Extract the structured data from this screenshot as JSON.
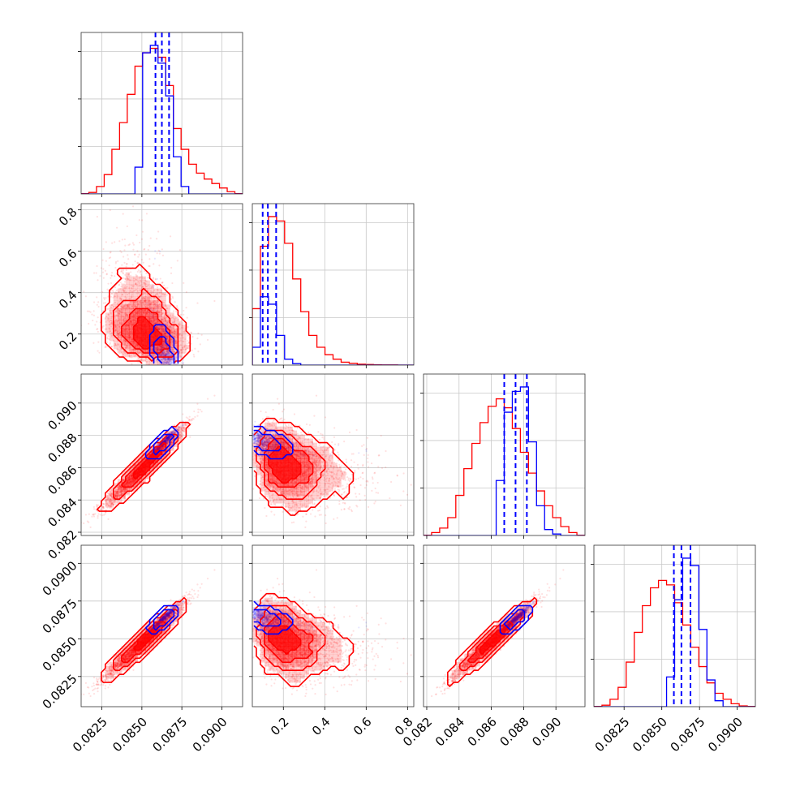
{
  "chart_data": {
    "type": "scatter",
    "plot": "corner",
    "title": "",
    "grid": true,
    "legend": "none",
    "colors": {
      "run_a": "#ff0000",
      "run_b": "#0000ff"
    },
    "params": [
      {
        "range": [
          0.0812,
          0.0913
        ],
        "ticks": [
          0.0825,
          0.085,
          0.0875,
          0.09
        ],
        "tick_labels": [
          "0.0825",
          "0.0850",
          "0.0875",
          "0.0900"
        ]
      },
      {
        "range": [
          0.05,
          0.83
        ],
        "ticks": [
          0.2,
          0.4,
          0.6,
          0.8
        ],
        "tick_labels": [
          "0.2",
          "0.4",
          "0.6",
          "0.8"
        ]
      },
      {
        "range": [
          0.0818,
          0.0918
        ],
        "ticks": [
          0.082,
          0.084,
          0.086,
          0.088,
          0.09
        ],
        "tick_labels": [
          "0.082",
          "0.084",
          "0.086",
          "0.088",
          "0.090"
        ]
      },
      {
        "range": [
          0.0805,
          0.0912
        ],
        "ticks": [
          0.0825,
          0.085,
          0.0875,
          0.09
        ],
        "tick_labels": [
          "0.0825",
          "0.0850",
          "0.0875",
          "0.0900"
        ]
      }
    ],
    "hist_red": [
      [
        0.002,
        0.01,
        0.05,
        0.13,
        0.3,
        0.48,
        0.67,
        0.86,
        0.95,
        0.98,
        0.92,
        0.73,
        0.44,
        0.3,
        0.2,
        0.14,
        0.1,
        0.07,
        0.04,
        0.015,
        0.002
      ],
      [
        0.38,
        0.8,
        1.0,
        0.97,
        0.82,
        0.58,
        0.36,
        0.2,
        0.12,
        0.07,
        0.04,
        0.02,
        0.012,
        0.006,
        0.004,
        0.002,
        0.001,
        0.001,
        0.0,
        0.0
      ],
      [
        0.002,
        0.02,
        0.05,
        0.12,
        0.27,
        0.45,
        0.62,
        0.76,
        0.87,
        0.92,
        0.86,
        0.72,
        0.56,
        0.42,
        0.3,
        0.2,
        0.12,
        0.06,
        0.02,
        0.002
      ],
      [
        0.002,
        0.01,
        0.05,
        0.13,
        0.3,
        0.5,
        0.68,
        0.8,
        0.85,
        0.82,
        0.7,
        0.55,
        0.4,
        0.27,
        0.16,
        0.09,
        0.05,
        0.02,
        0.005,
        0.002
      ]
    ],
    "hist_blue": [
      [
        0.0,
        0.0,
        0.0,
        0.0,
        0.0,
        0.0,
        0.0,
        0.18,
        0.95,
        1.0,
        0.88,
        0.66,
        0.25,
        0.05,
        0.0,
        0.0,
        0.0,
        0.0,
        0.0,
        0.0,
        0.0
      ],
      [
        0.12,
        0.46,
        0.41,
        0.2,
        0.04,
        0.01,
        0.0,
        0.0,
        0.0,
        0.0,
        0.0,
        0.0,
        0.0,
        0.0,
        0.0,
        0.0,
        0.0,
        0.0,
        0.0,
        0.0
      ],
      [
        0.0,
        0.0,
        0.0,
        0.0,
        0.0,
        0.0,
        0.0,
        0.0,
        0.0,
        0.37,
        0.83,
        0.97,
        1.0,
        0.63,
        0.2,
        0.04,
        0.01,
        0.0,
        0.0,
        0.0
      ],
      [
        0.0,
        0.0,
        0.0,
        0.0,
        0.0,
        0.0,
        0.0,
        0.0,
        0.0,
        0.2,
        0.72,
        1.0,
        0.95,
        0.52,
        0.18,
        0.04,
        0.0,
        0.0,
        0.0,
        0.0
      ]
    ],
    "quantile_lines_blue": [
      [
        0.08585,
        0.08625,
        0.0867
      ],
      [
        0.1,
        0.125,
        0.165
      ],
      [
        0.0868,
        0.0875,
        0.0882
      ],
      [
        0.0858,
        0.0863,
        0.0869
      ]
    ],
    "red_samples": {
      "mean": [
        0.0852,
        0.23,
        0.0861,
        0.0849
      ],
      "sd": [
        0.0012,
        0.1,
        0.0012,
        0.0012
      ],
      "corr": [
        [
          1.0,
          -0.3,
          0.97,
          0.97
        ],
        [
          -0.3,
          1.0,
          -0.3,
          -0.3
        ],
        [
          0.97,
          -0.3,
          1.0,
          0.97
        ],
        [
          0.97,
          -0.3,
          0.97,
          1.0
        ]
      ]
    },
    "blue_samples": {
      "mean": [
        0.0863,
        0.125,
        0.0875,
        0.0863
      ],
      "sd": [
        0.0004,
        0.04,
        0.0004,
        0.0004
      ],
      "corr": [
        [
          1.0,
          -0.5,
          0.96,
          0.96
        ],
        [
          -0.5,
          1.0,
          -0.5,
          -0.5
        ],
        [
          0.96,
          -0.5,
          1.0,
          0.96
        ],
        [
          0.96,
          -0.5,
          0.96,
          1.0
        ]
      ]
    }
  }
}
